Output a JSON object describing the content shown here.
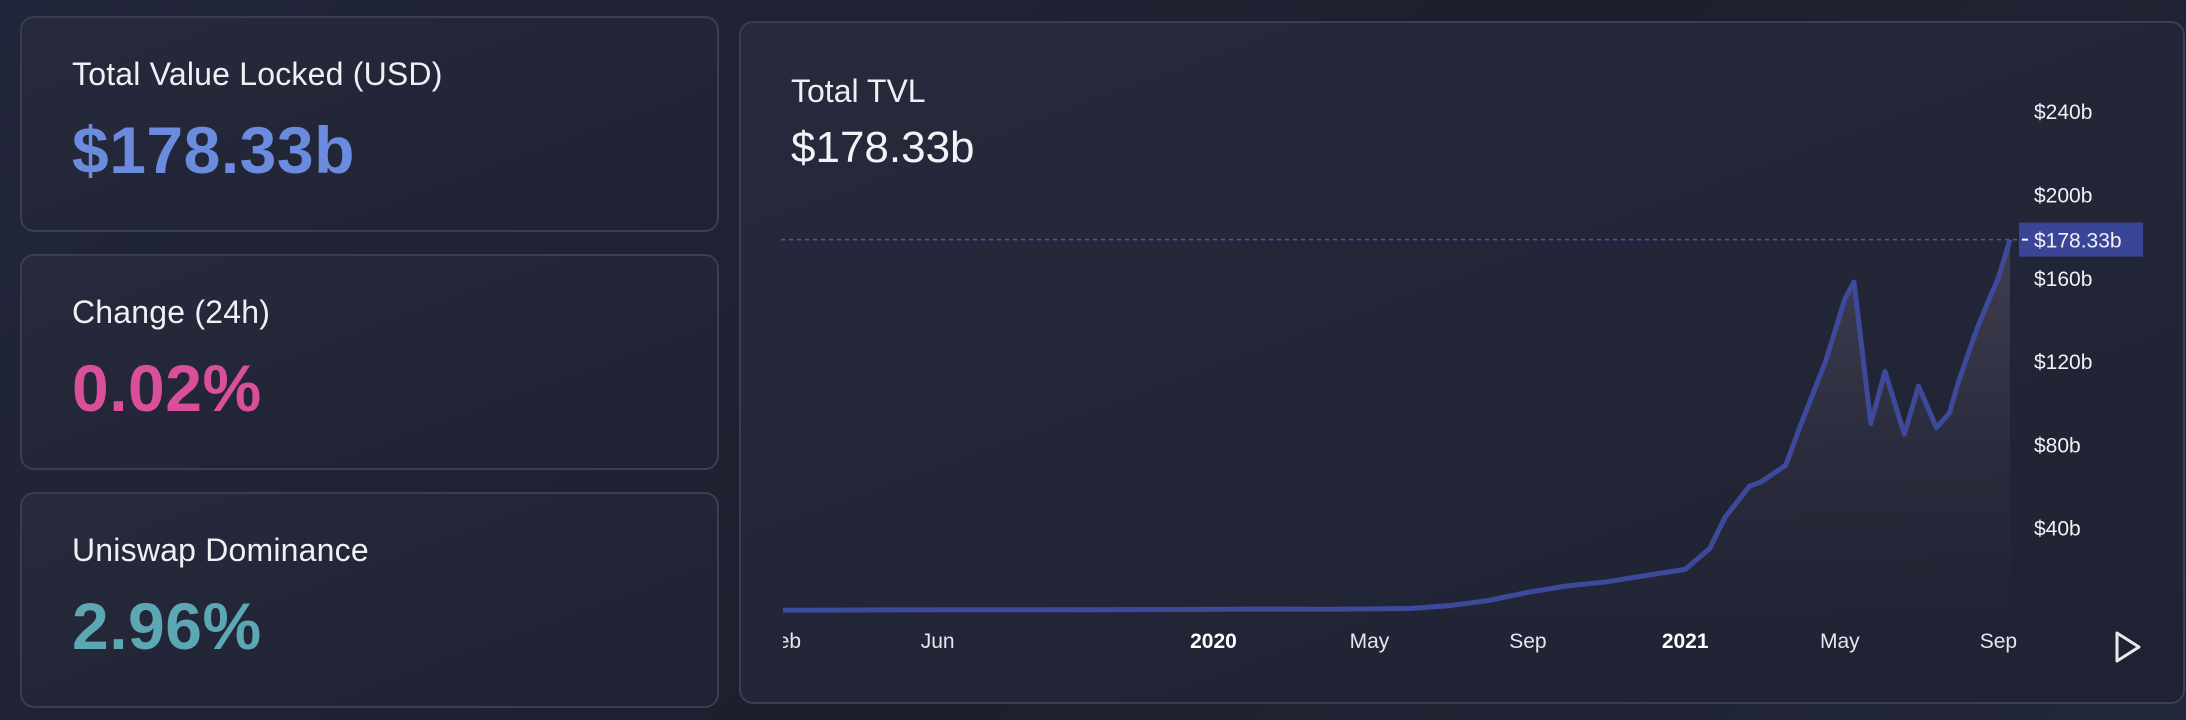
{
  "stats": {
    "tvl": {
      "label": "Total Value Locked (USD)",
      "value": "$178.33b",
      "color": "#6b8cde"
    },
    "change": {
      "label": "Change (24h)",
      "value": "0.02%",
      "color": "#d94f9a"
    },
    "dominance": {
      "label": "Uniswap Dominance",
      "value": "2.96%",
      "color": "#5ba7b3"
    }
  },
  "chart": {
    "title": "Total TVL",
    "value": "$178.33b",
    "current_label": "$178.33b",
    "play_icon": "play-icon"
  },
  "chart_data": {
    "type": "area",
    "title": "Total TVL",
    "xlabel": "",
    "ylabel": "",
    "y_unit": "$b",
    "ylim": [
      0,
      260
    ],
    "y_ticks": [
      40,
      80,
      120,
      160,
      200,
      240
    ],
    "y_tick_labels": [
      "$40b",
      "$80b",
      "$120b",
      "$160b",
      "$200b",
      "$240b"
    ],
    "x_tick_labels": [
      "Feb",
      "Jun",
      "2020",
      "May",
      "Sep",
      "2021",
      "May",
      "Sep"
    ],
    "x_ticks": [
      "2019-02",
      "2019-06",
      "2020-01",
      "2020-05",
      "2020-09",
      "2021-01",
      "2021-05",
      "2021-09"
    ],
    "x_range": [
      "2019-02",
      "2021-09"
    ],
    "current_value": 178.33,
    "grid": false,
    "line_color": "#3d4a9c",
    "series": [
      {
        "x": [
          "2019-02",
          "2019-04",
          "2019-06",
          "2019-08",
          "2019-10",
          "2019-12",
          "2020-02",
          "2020-04",
          "2020-06",
          "2020-07",
          "2020-08",
          "2020-09",
          "2020-10",
          "2020-11",
          "2020-12",
          "2021-01",
          "2021-01-20",
          "2021-02",
          "2021-02-20",
          "2021-03",
          "2021-03-20",
          "2021-04",
          "2021-04-20",
          "2021-05-05",
          "2021-05-12",
          "2021-05-25",
          "2021-06-05",
          "2021-06-20",
          "2021-07",
          "2021-07-15",
          "2021-07-25",
          "2021-08",
          "2021-08-15",
          "2021-08-25",
          "2021-09",
          "2021-09-10"
        ],
        "values": [
          0.4,
          0.5,
          0.6,
          0.6,
          0.6,
          0.7,
          0.9,
          0.8,
          1.2,
          2.5,
          5,
          9,
          12,
          14,
          17,
          20,
          30,
          45,
          60,
          62,
          70,
          90,
          120,
          150,
          158,
          90,
          115,
          85,
          108,
          88,
          95,
          110,
          135,
          150,
          160,
          178.33
        ]
      }
    ]
  }
}
